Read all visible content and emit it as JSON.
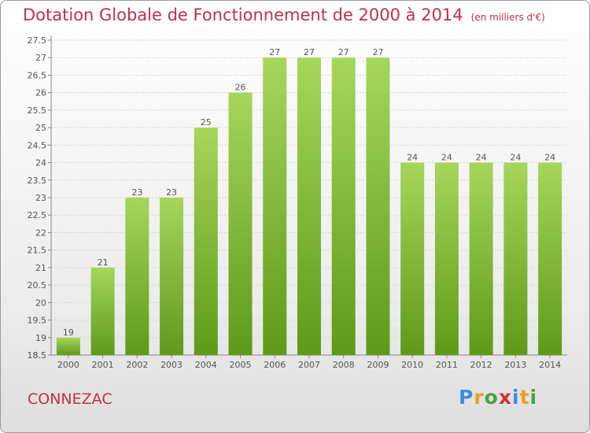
{
  "header": {
    "title": "Dotation Globale de Fonctionnement de 2000 à 2014",
    "subtitle": "(en milliers d'€)"
  },
  "footer": {
    "commune": "CONNEZAC",
    "logo_text": "Proxiti",
    "logo_letters": [
      {
        "ch": "P",
        "color": "#3a8fd8"
      },
      {
        "ch": "r",
        "color": "#e8a020"
      },
      {
        "ch": "o",
        "color": "#4aa040"
      },
      {
        "ch": "x",
        "color": "#d83030"
      },
      {
        "ch": "i",
        "color": "#3a8fd8"
      },
      {
        "ch": "t",
        "color": "#e8a020"
      },
      {
        "ch": "i",
        "color": "#4aa040"
      }
    ]
  },
  "colors": {
    "bar_top": "#a6d65a",
    "bar_bottom": "#5e9a18",
    "title": "#c0304a"
  },
  "chart_data": {
    "type": "bar",
    "categories": [
      "2000",
      "2001",
      "2002",
      "2003",
      "2004",
      "2005",
      "2006",
      "2007",
      "2008",
      "2009",
      "2010",
      "2011",
      "2012",
      "2013",
      "2014"
    ],
    "values": [
      19,
      21,
      23,
      23,
      25,
      26,
      27,
      27,
      27,
      27,
      24,
      24,
      24,
      24,
      24
    ],
    "data_labels": [
      "19",
      "21",
      "23",
      "23",
      "25",
      "26",
      "27",
      "27",
      "27",
      "27",
      "24",
      "24",
      "24",
      "24",
      "24"
    ],
    "ylim": [
      18.5,
      27.5
    ],
    "yticks": [
      18.5,
      19,
      19.5,
      20,
      20.5,
      21,
      21.5,
      22,
      22.5,
      23,
      23.5,
      24,
      24.5,
      25,
      25.5,
      26,
      26.5,
      27,
      27.5
    ],
    "ytick_labels": [
      "18.5",
      "19",
      "19.5",
      "20",
      "20.5",
      "21",
      "21.5",
      "22",
      "22.5",
      "23",
      "23.5",
      "24",
      "24.5",
      "25",
      "25.5",
      "26",
      "26.5",
      "27",
      "27.5"
    ],
    "grid": true,
    "xlabel": "",
    "ylabel": ""
  }
}
